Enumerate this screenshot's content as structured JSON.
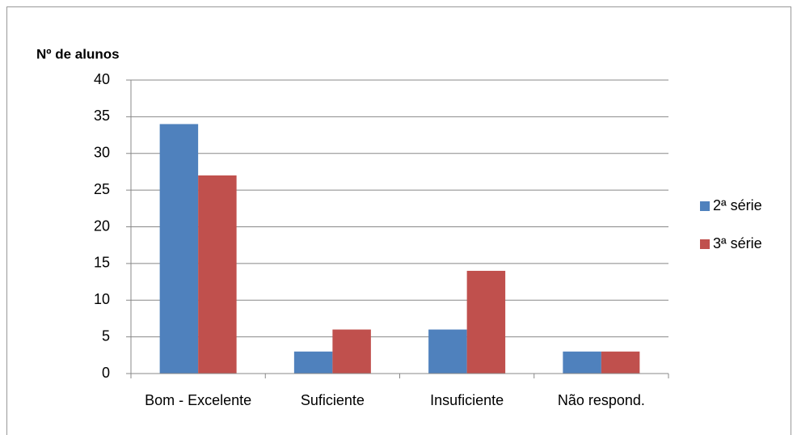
{
  "chart_data": {
    "type": "bar",
    "y_axis_label": "Nº de alunos",
    "categories": [
      "Bom - Excelente",
      "Suficiente",
      "Insuficiente",
      "Não respond."
    ],
    "series": [
      {
        "name": "2ª série",
        "color": "#4f81bd",
        "values": [
          34,
          3,
          6,
          3
        ]
      },
      {
        "name": "3ª série",
        "color": "#c0504d",
        "values": [
          27,
          6,
          14,
          3
        ]
      }
    ],
    "ylim": [
      0,
      40
    ],
    "yticks": [
      0,
      5,
      10,
      15,
      20,
      25,
      30,
      35,
      40
    ],
    "grid": true,
    "legend": "right"
  }
}
